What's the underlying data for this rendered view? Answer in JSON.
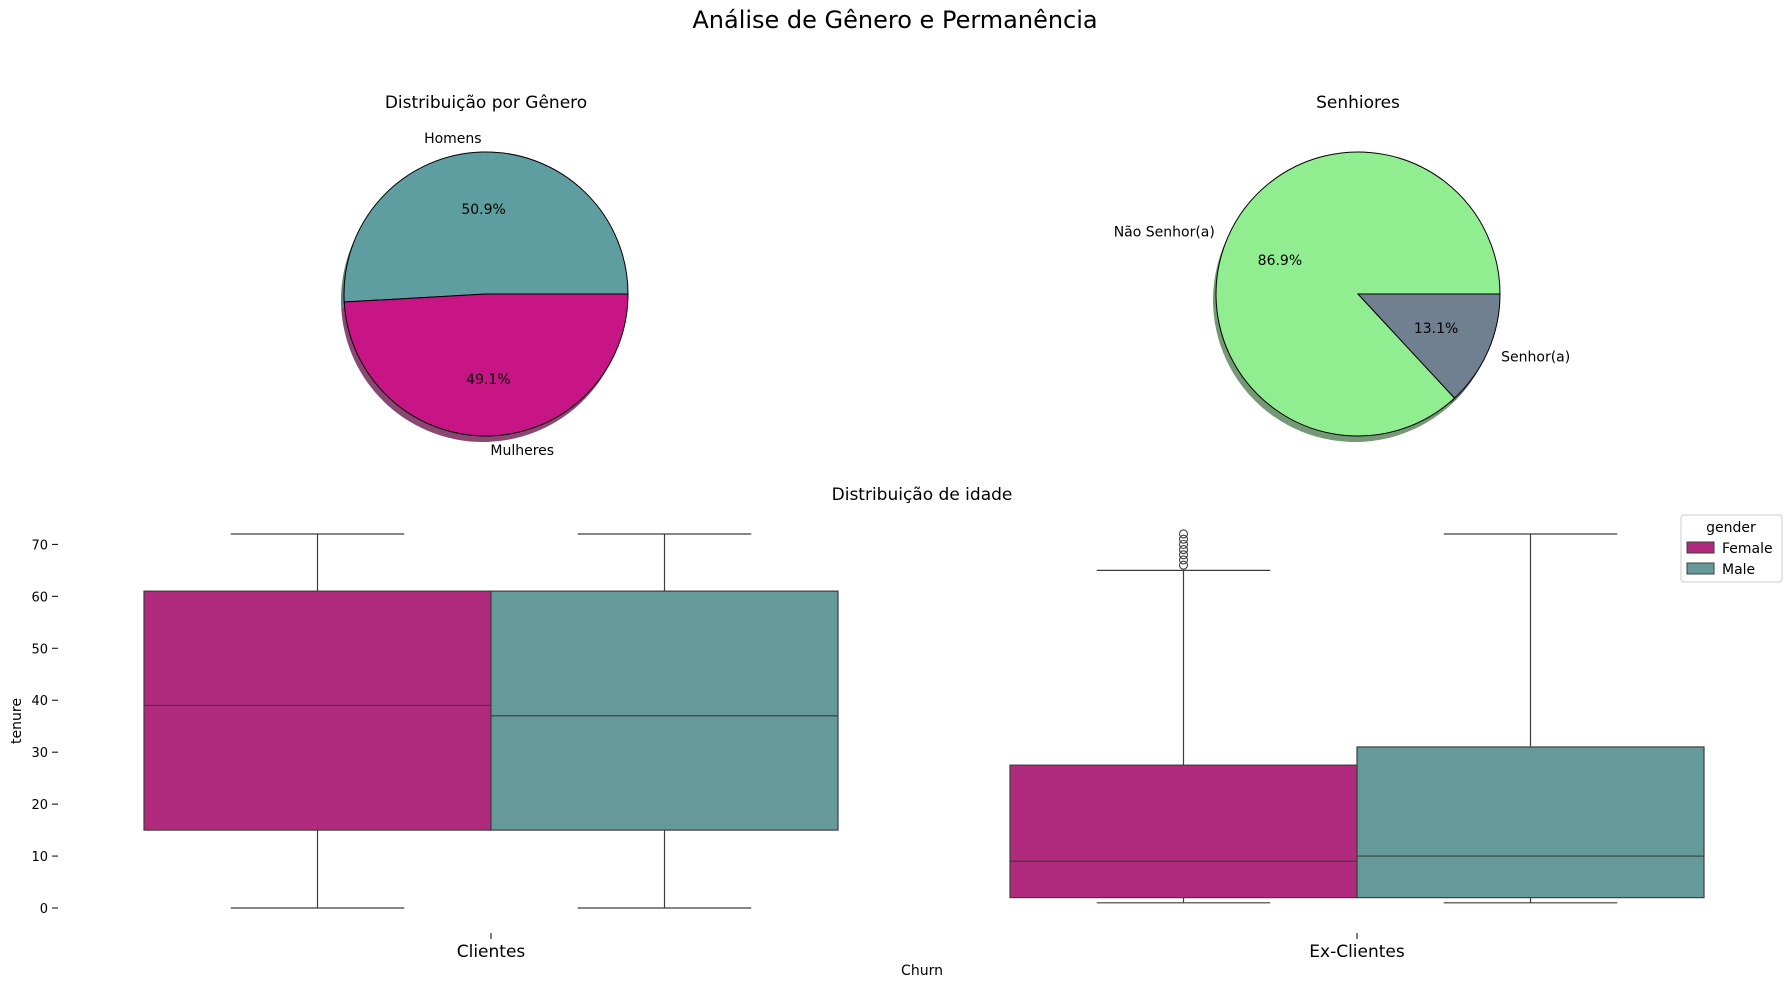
{
  "figure": {
    "suptitle": "Análise de Gênero e Permanência"
  },
  "chart_data": [
    {
      "type": "pie",
      "title": "Distribuição por Gênero",
      "shadow": true,
      "start_angle_deg": 0,
      "slices": [
        {
          "label": "Homens",
          "value": 50.9,
          "pct_label": "50.9%",
          "color": "#5F9EA0"
        },
        {
          "label": "Mulheres",
          "value": 49.1,
          "pct_label": "49.1%",
          "color": "#C71585"
        }
      ]
    },
    {
      "type": "pie",
      "title": "Senhiores",
      "shadow": true,
      "start_angle_deg": 0,
      "slices": [
        {
          "label": "Não Senhor(a)",
          "value": 86.9,
          "pct_label": "86.9%",
          "color": "#90EE90"
        },
        {
          "label": "Senhor(a)",
          "value": 13.1,
          "pct_label": "13.1%",
          "color": "#708090"
        }
      ]
    },
    {
      "type": "box",
      "title": "Distribuição de idade",
      "xlabel": "Churn",
      "ylabel": "tenure",
      "categories": [
        "Clientes",
        "Ex-Clientes"
      ],
      "ylim": [
        -2.5,
        74.5
      ],
      "yticks": [
        0,
        10,
        20,
        30,
        40,
        50,
        60,
        70
      ],
      "legend": {
        "title": "gender",
        "position": "top-right"
      },
      "series": [
        {
          "name": "Female",
          "color": "#B02A7D",
          "boxes": [
            {
              "whislo": 0,
              "q1": 15,
              "med": 39,
              "q3": 61,
              "whishi": 72,
              "fliers": []
            },
            {
              "whislo": 1,
              "q1": 2,
              "med": 9,
              "q3": 27.5,
              "whishi": 65,
              "fliers": [
                66,
                67,
                68,
                69,
                70,
                71,
                72
              ]
            }
          ]
        },
        {
          "name": "Male",
          "color": "#669999",
          "boxes": [
            {
              "whislo": 0,
              "q1": 15,
              "med": 37,
              "q3": 61,
              "whishi": 72,
              "fliers": []
            },
            {
              "whislo": 1,
              "q1": 2,
              "med": 10,
              "q3": 31,
              "whishi": 72,
              "fliers": []
            }
          ]
        }
      ]
    }
  ]
}
